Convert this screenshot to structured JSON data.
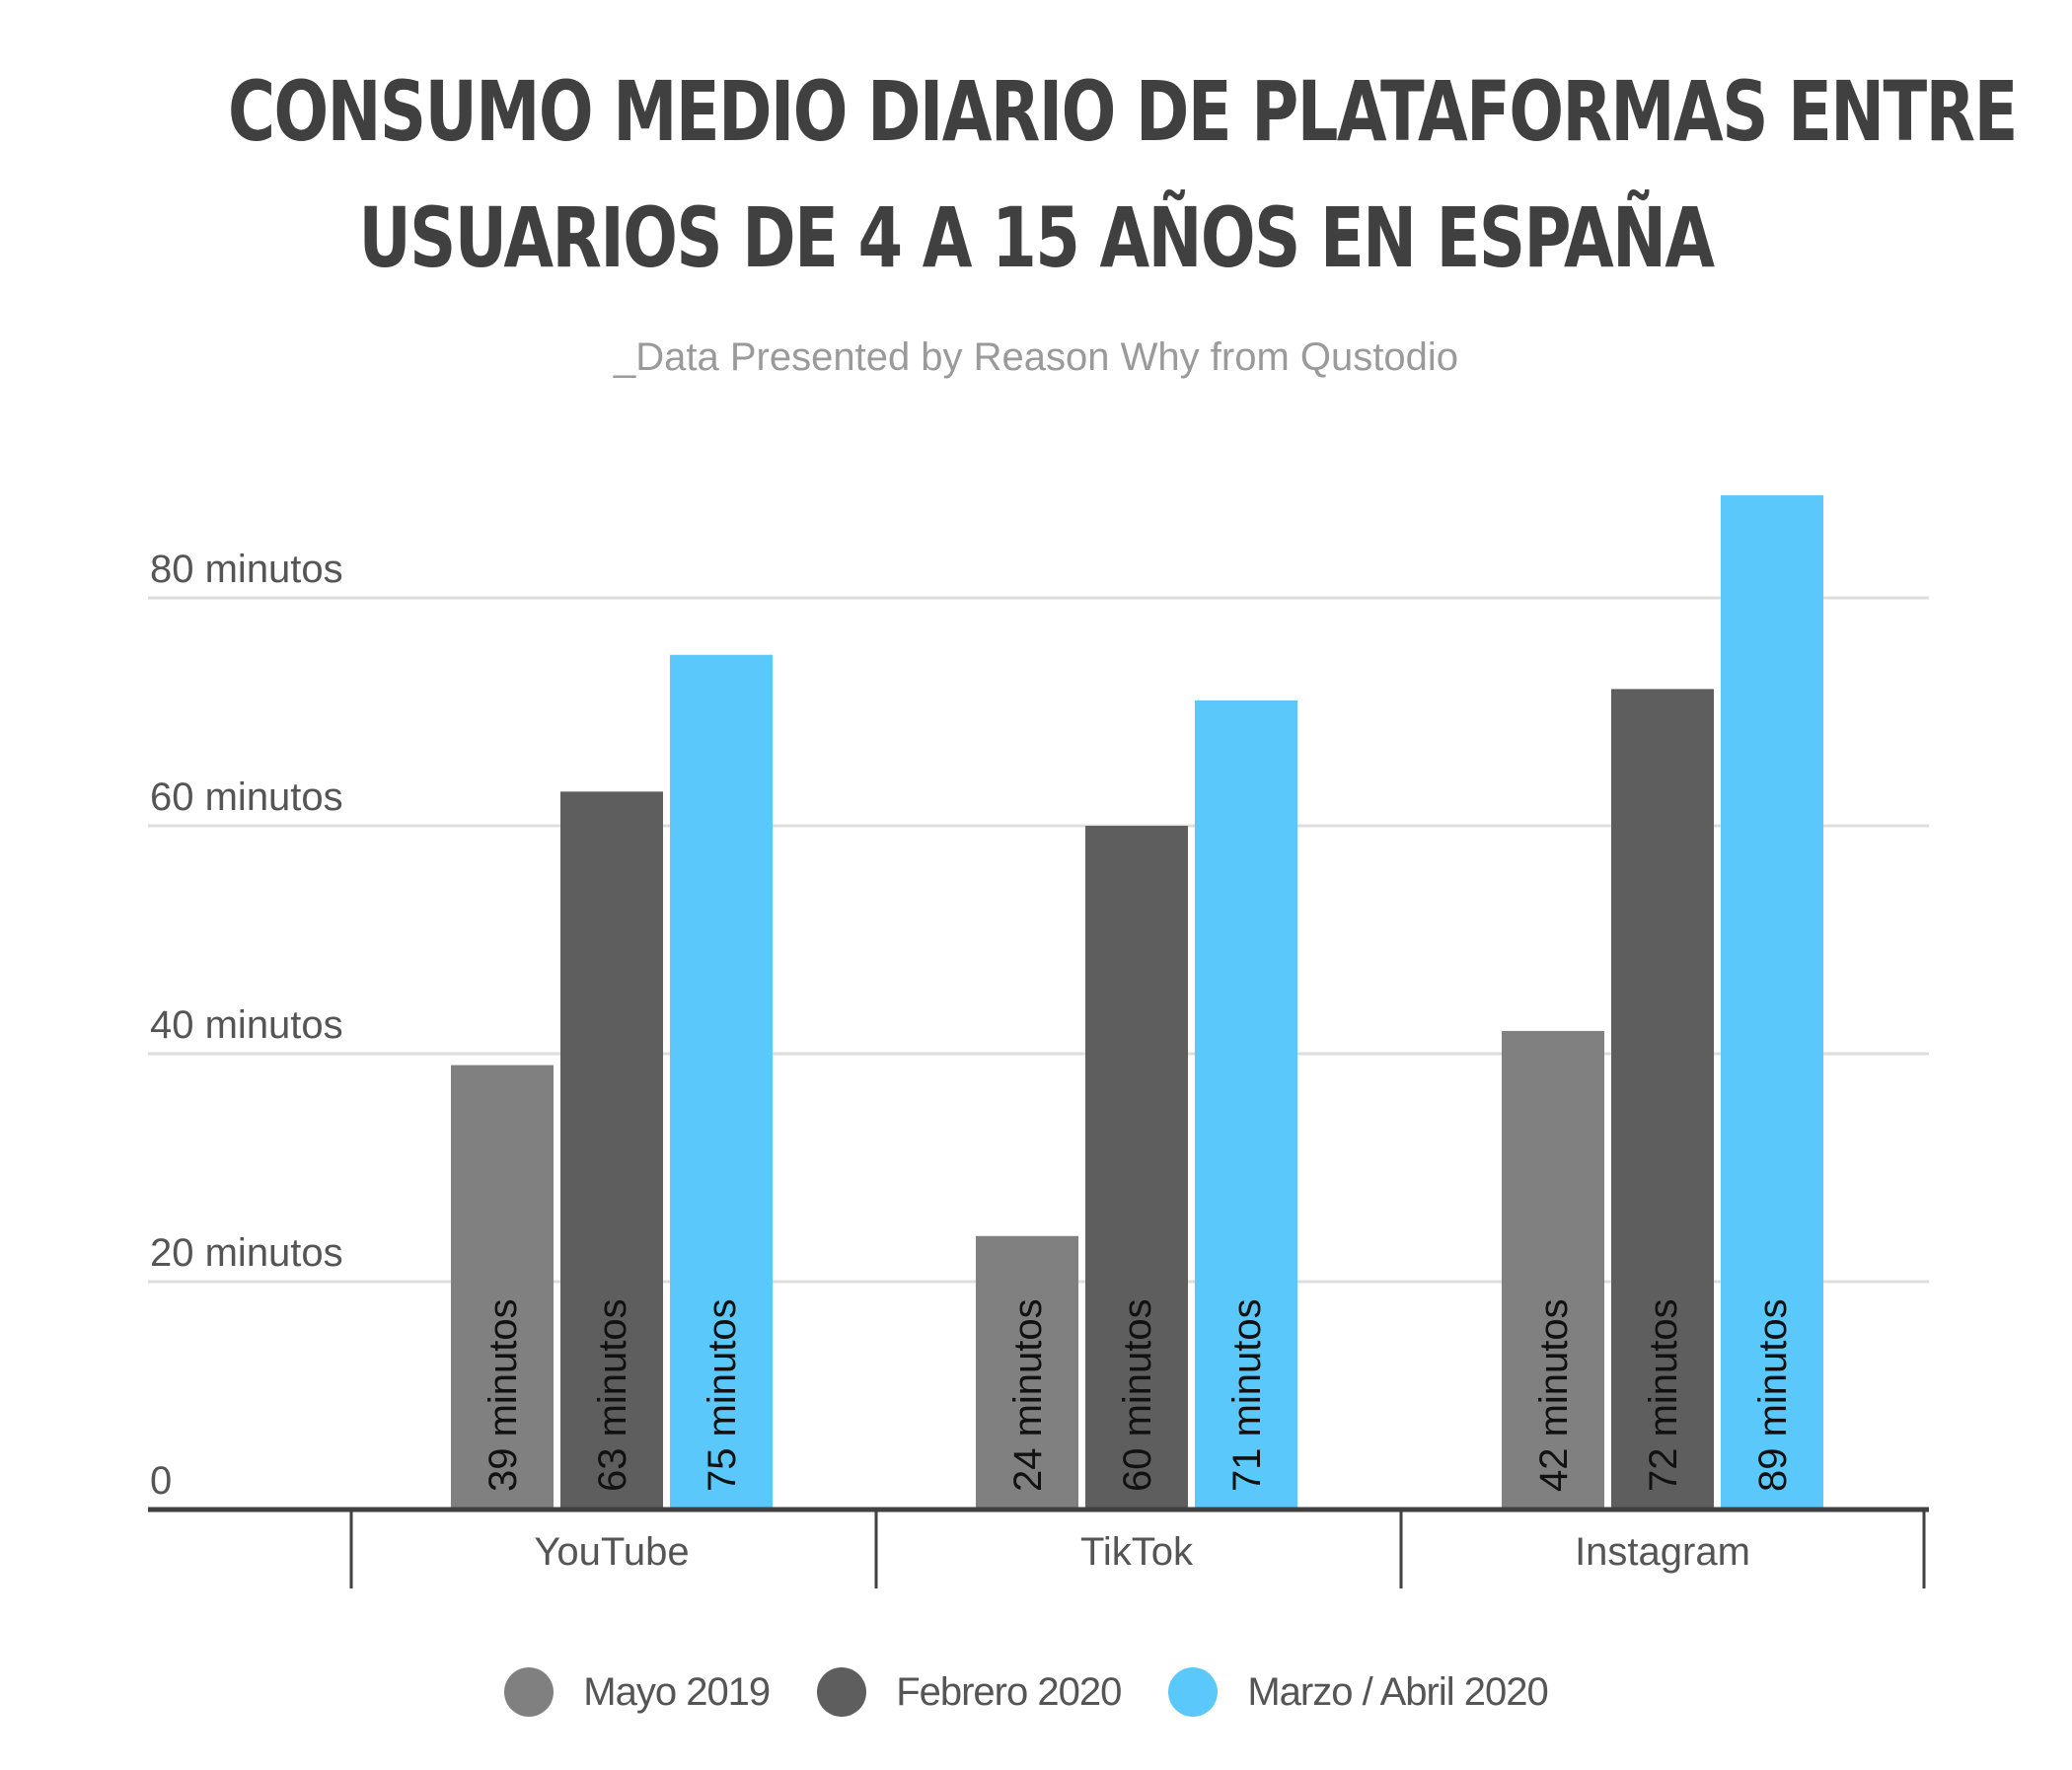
{
  "title_lines": [
    "CONSUMO MEDIO DIARIO DE PLATAFORMAS ENTRE",
    "USUARIOS DE 4 A 15 AÑOS EN ESPAÑA"
  ],
  "subtitle": "_Data Presented by Reason Why from Qustodio",
  "chart_data": {
    "type": "bar",
    "title": "CONSUMO MEDIO DIARIO DE PLATAFORMAS ENTRE USUARIOS DE 4 A 15 AÑOS EN ESPAÑA",
    "subtitle": "_Data Presented by Reason Why from Qustodio",
    "categories": [
      "YouTube",
      "TikTok",
      "Instagram"
    ],
    "series": [
      {
        "name": "Mayo 2019",
        "values": [
          39,
          24,
          42
        ],
        "color": "#808080",
        "labels": [
          "39 minutos",
          "24 minutos",
          "42 minutos"
        ]
      },
      {
        "name": "Febrero 2020",
        "values": [
          63,
          60,
          72
        ],
        "color": "#5e5e5e",
        "labels": [
          "63 minutos",
          "60 minutos",
          "72 minutos"
        ]
      },
      {
        "name": "Marzo / Abril 2020",
        "values": [
          75,
          71,
          89
        ],
        "color": "#5ac8fa",
        "labels": [
          "75 minutos",
          "71 minutos",
          "89 minutos"
        ]
      }
    ],
    "yticks": [
      0,
      20,
      40,
      60,
      80
    ],
    "ytick_labels": [
      "0",
      "20 minutos",
      "40 minutos",
      "60 minutos",
      "80 minutos"
    ],
    "ylim": [
      0,
      90
    ],
    "xlabel": "",
    "ylabel": "",
    "grid": true,
    "legend_position": "bottom"
  },
  "colors": {
    "title": "#404040",
    "axis": "#404040",
    "grid": "#dddddd",
    "tick_text": "#555555",
    "bar_label_text": "#111111"
  }
}
